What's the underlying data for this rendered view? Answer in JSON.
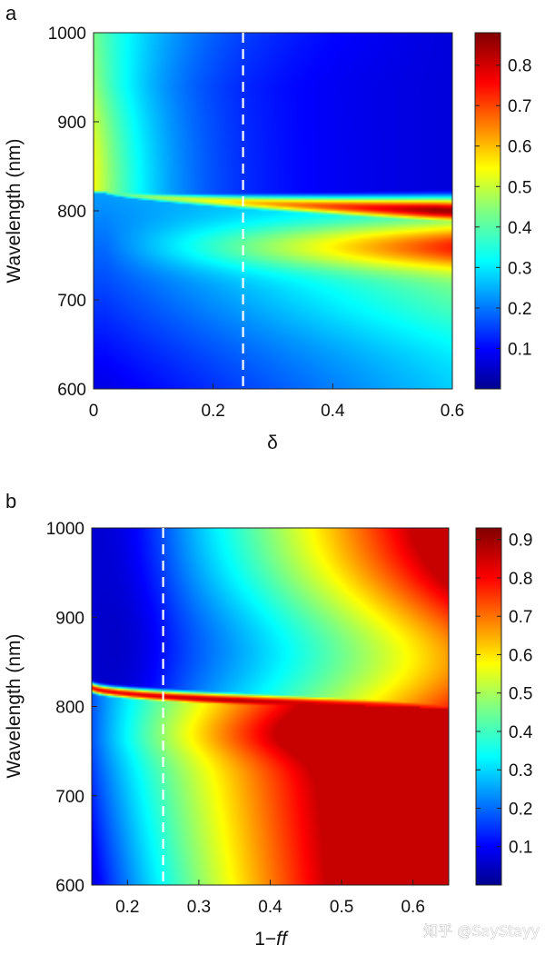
{
  "watermark": "知乎 @SayStayy",
  "chart_data": [
    {
      "type": "heatmap",
      "panel_label": "a",
      "xlabel": "δ",
      "ylabel": "Wavelength (nm)",
      "xlim": [
        0,
        0.6
      ],
      "ylim": [
        600,
        1000
      ],
      "xticks": [
        0,
        0.2,
        0.4,
        0.6
      ],
      "xtick_labels": [
        "0",
        "0.2",
        "0.4",
        "0.6"
      ],
      "yticks": [
        600,
        700,
        800,
        900,
        1000
      ],
      "ytick_labels": [
        "600",
        "700",
        "800",
        "900",
        "1000"
      ],
      "dashed_line_x": 0.25,
      "colorbar": {
        "range": [
          0,
          0.88
        ],
        "ticks": [
          0.1,
          0.2,
          0.3,
          0.4,
          0.5,
          0.6,
          0.7,
          0.8
        ],
        "tick_labels": [
          "0.1",
          "0.2",
          "0.3",
          "0.4",
          "0.5",
          "0.6",
          "0.7",
          "0.8"
        ],
        "colormap": "jet"
      }
    },
    {
      "type": "heatmap",
      "panel_label": "b",
      "xlabel_main": "1−",
      "xlabel_italic": "ff",
      "ylabel": "Wavelength (nm)",
      "xlim": [
        0.15,
        0.65
      ],
      "ylim": [
        600,
        1000
      ],
      "xticks": [
        0.2,
        0.3,
        0.4,
        0.5,
        0.6
      ],
      "xtick_labels": [
        "0.2",
        "0.3",
        "0.4",
        "0.5",
        "0.6"
      ],
      "yticks": [
        600,
        700,
        800,
        900,
        1000
      ],
      "ytick_labels": [
        "600",
        "700",
        "800",
        "900",
        "1000"
      ],
      "dashed_line_x": 0.25,
      "colorbar": {
        "range": [
          0,
          0.93
        ],
        "ticks": [
          0.1,
          0.2,
          0.3,
          0.4,
          0.5,
          0.6,
          0.7,
          0.8,
          0.9
        ],
        "tick_labels": [
          "0.1",
          "0.2",
          "0.3",
          "0.4",
          "0.5",
          "0.6",
          "0.7",
          "0.8",
          "0.9"
        ],
        "colormap": "jet"
      }
    }
  ]
}
